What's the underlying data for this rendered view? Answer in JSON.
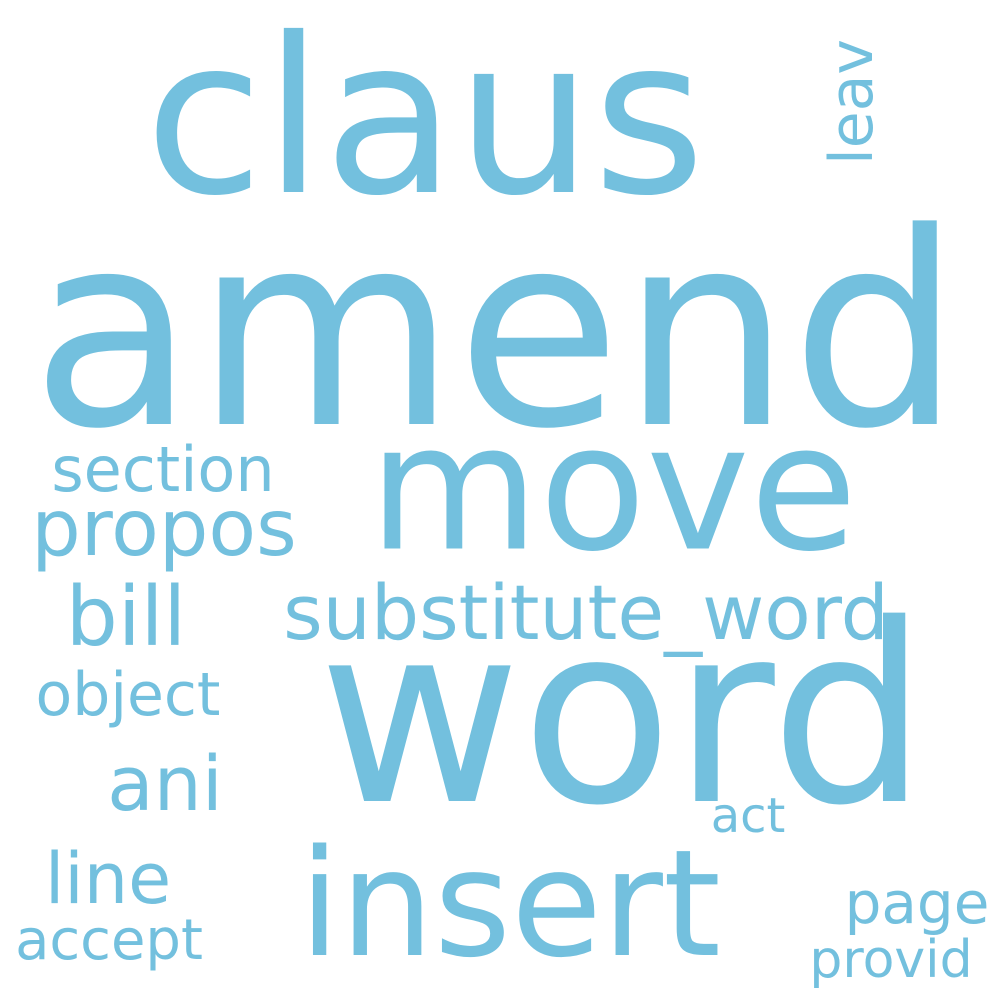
{
  "cloud": {
    "color": "#73c0de",
    "words": [
      {
        "text": "claus"
      },
      {
        "text": "amend"
      },
      {
        "text": "move"
      },
      {
        "text": "word"
      },
      {
        "text": "insert"
      },
      {
        "text": "section"
      },
      {
        "text": "propos"
      },
      {
        "text": "bill"
      },
      {
        "text": "substitute_word"
      },
      {
        "text": "object"
      },
      {
        "text": "ani"
      },
      {
        "text": "line"
      },
      {
        "text": "accept"
      },
      {
        "text": "leav"
      },
      {
        "text": "act"
      },
      {
        "text": "page"
      },
      {
        "text": "provid"
      }
    ]
  }
}
